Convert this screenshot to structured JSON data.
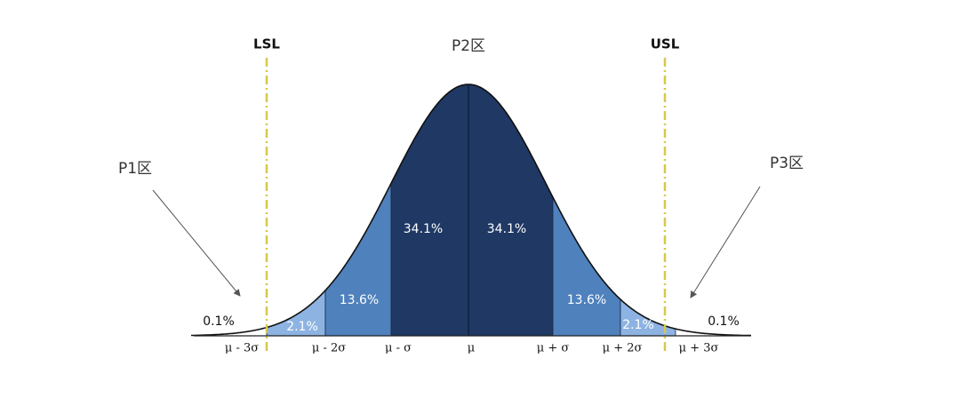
{
  "limits": {
    "lsl": "LSL",
    "usl": "USL"
  },
  "zones": {
    "p1": "P1区",
    "p2": "P2区",
    "p3": "P3区"
  },
  "regions": [
    "0.1%",
    "2.1%",
    "13.6%",
    "34.1%",
    "34.1%",
    "13.6%",
    "2.1%",
    "0.1%"
  ],
  "axis_labels": [
    "μ - 3σ",
    "μ - 2σ",
    "μ - σ",
    "μ",
    "μ + σ",
    "μ + 2σ",
    "μ + 3σ"
  ]
}
